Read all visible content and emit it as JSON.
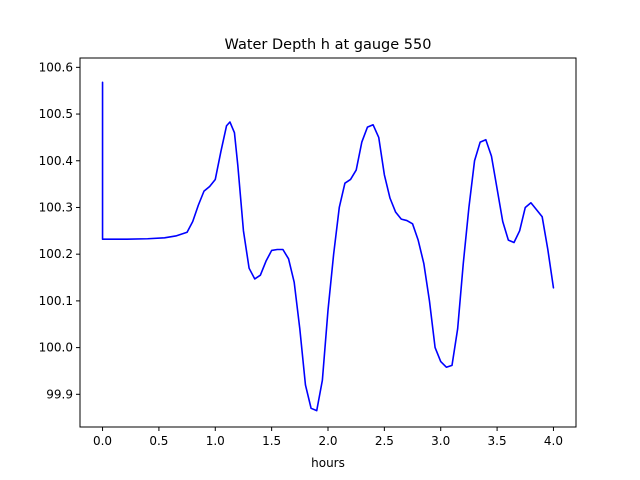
{
  "chart_data": {
    "type": "line",
    "title": "Water Depth h at gauge 550",
    "xlabel": "hours",
    "ylabel": "",
    "xlim": [
      -0.2,
      4.2
    ],
    "ylim": [
      99.83,
      100.62
    ],
    "xticks": [
      {
        "value": 0.0,
        "label": "0.0"
      },
      {
        "value": 0.5,
        "label": "0.5"
      },
      {
        "value": 1.0,
        "label": "1.0"
      },
      {
        "value": 1.5,
        "label": "1.5"
      },
      {
        "value": 2.0,
        "label": "2.0"
      },
      {
        "value": 2.5,
        "label": "2.5"
      },
      {
        "value": 3.0,
        "label": "3.0"
      },
      {
        "value": 3.5,
        "label": "3.5"
      },
      {
        "value": 4.0,
        "label": "4.0"
      }
    ],
    "yticks": [
      {
        "value": 99.9,
        "label": "99.9"
      },
      {
        "value": 100.0,
        "label": "100.0"
      },
      {
        "value": 100.1,
        "label": "100.1"
      },
      {
        "value": 100.2,
        "label": "100.2"
      },
      {
        "value": 100.3,
        "label": "100.3"
      },
      {
        "value": 100.4,
        "label": "100.4"
      },
      {
        "value": 100.5,
        "label": "100.5"
      },
      {
        "value": 100.6,
        "label": "100.6"
      }
    ],
    "grid": false,
    "series": [
      {
        "color": "#0000ff",
        "points": [
          [
            0.0,
            100.568
          ],
          [
            0.0,
            100.232
          ],
          [
            0.2,
            100.232
          ],
          [
            0.4,
            100.233
          ],
          [
            0.55,
            100.235
          ],
          [
            0.65,
            100.239
          ],
          [
            0.75,
            100.247
          ],
          [
            0.8,
            100.27
          ],
          [
            0.85,
            100.305
          ],
          [
            0.9,
            100.335
          ],
          [
            0.95,
            100.345
          ],
          [
            1.0,
            100.36
          ],
          [
            1.05,
            100.42
          ],
          [
            1.1,
            100.475
          ],
          [
            1.13,
            100.483
          ],
          [
            1.17,
            100.46
          ],
          [
            1.2,
            100.39
          ],
          [
            1.25,
            100.25
          ],
          [
            1.3,
            100.17
          ],
          [
            1.35,
            100.147
          ],
          [
            1.4,
            100.155
          ],
          [
            1.45,
            100.185
          ],
          [
            1.5,
            100.208
          ],
          [
            1.55,
            100.21
          ],
          [
            1.6,
            100.21
          ],
          [
            1.65,
            100.19
          ],
          [
            1.7,
            100.14
          ],
          [
            1.75,
            100.04
          ],
          [
            1.8,
            99.92
          ],
          [
            1.85,
            99.87
          ],
          [
            1.9,
            99.865
          ],
          [
            1.95,
            99.93
          ],
          [
            2.0,
            100.08
          ],
          [
            2.05,
            100.2
          ],
          [
            2.1,
            100.3
          ],
          [
            2.15,
            100.352
          ],
          [
            2.2,
            100.36
          ],
          [
            2.25,
            100.38
          ],
          [
            2.3,
            100.44
          ],
          [
            2.35,
            100.472
          ],
          [
            2.4,
            100.477
          ],
          [
            2.45,
            100.45
          ],
          [
            2.5,
            100.37
          ],
          [
            2.55,
            100.32
          ],
          [
            2.6,
            100.29
          ],
          [
            2.65,
            100.275
          ],
          [
            2.7,
            100.272
          ],
          [
            2.75,
            100.265
          ],
          [
            2.8,
            100.23
          ],
          [
            2.85,
            100.18
          ],
          [
            2.9,
            100.1
          ],
          [
            2.95,
            100.0
          ],
          [
            3.0,
            99.97
          ],
          [
            3.05,
            99.958
          ],
          [
            3.1,
            99.962
          ],
          [
            3.15,
            100.04
          ],
          [
            3.2,
            100.18
          ],
          [
            3.25,
            100.3
          ],
          [
            3.3,
            100.4
          ],
          [
            3.35,
            100.44
          ],
          [
            3.4,
            100.445
          ],
          [
            3.45,
            100.41
          ],
          [
            3.5,
            100.34
          ],
          [
            3.55,
            100.27
          ],
          [
            3.6,
            100.23
          ],
          [
            3.65,
            100.225
          ],
          [
            3.7,
            100.25
          ],
          [
            3.75,
            100.3
          ],
          [
            3.8,
            100.31
          ],
          [
            3.85,
            100.295
          ],
          [
            3.9,
            100.28
          ],
          [
            3.95,
            100.21
          ],
          [
            4.0,
            100.128
          ]
        ]
      }
    ]
  }
}
